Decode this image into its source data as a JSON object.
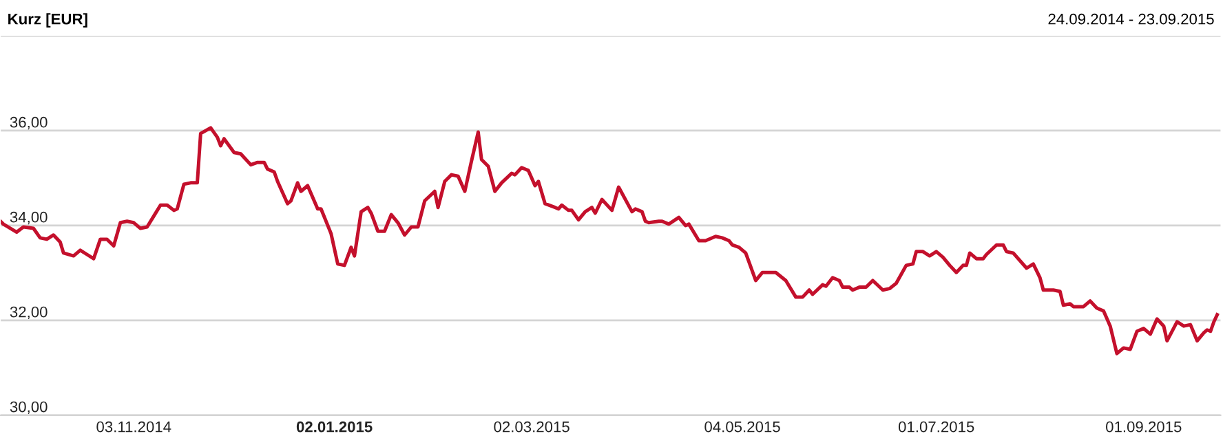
{
  "chart_data": {
    "type": "line",
    "title": "Kurz [EUR]",
    "subtitle": "24.09.2014 - 23.09.2015",
    "xlim": [
      "2014-09-24",
      "2015-09-24"
    ],
    "xticks": [
      {
        "value": "2014-11-03",
        "label": "03.11.2014"
      },
      {
        "value": "2015-01-02",
        "label": "02.01.2015"
      },
      {
        "value": "2015-03-02",
        "label": "02.03.2015"
      },
      {
        "value": "2015-05-04",
        "label": "04.05.2015"
      },
      {
        "value": "2015-07-01",
        "label": "01.07.2015"
      },
      {
        "value": "2015-09-01",
        "label": "01.09.2015"
      }
    ],
    "ylim": [
      30,
      38
    ],
    "yticks": [
      {
        "value": 30,
        "label": "30,00"
      },
      {
        "value": 32,
        "label": "32,00"
      },
      {
        "value": 34,
        "label": "34,00"
      },
      {
        "value": 36,
        "label": "36,00"
      },
      {
        "value": 38,
        "label": null
      }
    ],
    "grid": "y",
    "legend": false,
    "marker": "none",
    "line_style": "solid",
    "series": [
      {
        "color": "#c4102c",
        "x": [
          "2014-09-24",
          "2014-09-25",
          "2014-09-29",
          "2014-10-01",
          "2014-10-04",
          "2014-10-06",
          "2014-10-08",
          "2014-10-10",
          "2014-10-12",
          "2014-10-13",
          "2014-10-16",
          "2014-10-18",
          "2014-10-20",
          "2014-10-22",
          "2014-10-24",
          "2014-10-26",
          "2014-10-28",
          "2014-10-30",
          "2014-11-01",
          "2014-11-03",
          "2014-11-05",
          "2014-11-07",
          "2014-11-09",
          "2014-11-11",
          "2014-11-13",
          "2014-11-15",
          "2014-11-16",
          "2014-11-18",
          "2014-11-20",
          "2014-11-22",
          "2014-11-23",
          "2014-11-26",
          "2014-11-28",
          "2014-11-29",
          "2014-11-30",
          "2014-12-03",
          "2014-12-05",
          "2014-12-08",
          "2014-12-10",
          "2014-12-12",
          "2014-12-13",
          "2014-12-15",
          "2014-12-16",
          "2014-12-19",
          "2014-12-20",
          "2014-12-22",
          "2014-12-23",
          "2014-12-25",
          "2014-12-28",
          "2014-12-29",
          "2015-01-01",
          "2015-01-03",
          "2015-01-05",
          "2015-01-07",
          "2015-01-08",
          "2015-01-10",
          "2015-01-12",
          "2015-01-13",
          "2015-01-15",
          "2015-01-17",
          "2015-01-19",
          "2015-01-21",
          "2015-01-23",
          "2015-01-25",
          "2015-01-27",
          "2015-01-29",
          "2015-02-01",
          "2015-02-02",
          "2015-02-04",
          "2015-02-06",
          "2015-02-08",
          "2015-02-10",
          "2015-02-12",
          "2015-02-14",
          "2015-02-15",
          "2015-02-17",
          "2015-02-19",
          "2015-02-21",
          "2015-02-24",
          "2015-02-25",
          "2015-02-27",
          "2015-03-01",
          "2015-03-03",
          "2015-03-04",
          "2015-03-06",
          "2015-03-09",
          "2015-03-10",
          "2015-03-11",
          "2015-03-13",
          "2015-03-14",
          "2015-03-16",
          "2015-03-18",
          "2015-03-20",
          "2015-03-21",
          "2015-03-23",
          "2015-03-26",
          "2015-03-28",
          "2015-04-01",
          "2015-04-02",
          "2015-04-04",
          "2015-04-05",
          "2015-04-06",
          "2015-04-09",
          "2015-04-10",
          "2015-04-12",
          "2015-04-15",
          "2015-04-17",
          "2015-04-18",
          "2015-04-21",
          "2015-04-23",
          "2015-04-26",
          "2015-04-28",
          "2015-04-30",
          "2015-05-01",
          "2015-05-03",
          "2015-05-05",
          "2015-05-08",
          "2015-05-10",
          "2015-05-14",
          "2015-05-17",
          "2015-05-20",
          "2015-05-22",
          "2015-05-24",
          "2015-05-25",
          "2015-05-28",
          "2015-05-29",
          "2015-05-31",
          "2015-06-02",
          "2015-06-03",
          "2015-06-05",
          "2015-06-06",
          "2015-06-08",
          "2015-06-10",
          "2015-06-12",
          "2015-06-15",
          "2015-06-17",
          "2015-06-19",
          "2015-06-22",
          "2015-06-24",
          "2015-06-25",
          "2015-06-27",
          "2015-06-29",
          "2015-07-01",
          "2015-07-03",
          "2015-07-05",
          "2015-07-07",
          "2015-07-09",
          "2015-07-10",
          "2015-07-11",
          "2015-07-13",
          "2015-07-15",
          "2015-07-16",
          "2015-07-19",
          "2015-07-21",
          "2015-07-22",
          "2015-07-24",
          "2015-07-28",
          "2015-07-30",
          "2015-08-01",
          "2015-08-02",
          "2015-08-05",
          "2015-08-07",
          "2015-08-08",
          "2015-08-10",
          "2015-08-11",
          "2015-08-14",
          "2015-08-16",
          "2015-08-18",
          "2015-08-20",
          "2015-08-22",
          "2015-08-24",
          "2015-08-26",
          "2015-08-28",
          "2015-08-30",
          "2015-09-01",
          "2015-09-03",
          "2015-09-05",
          "2015-09-07",
          "2015-09-08",
          "2015-09-11",
          "2015-09-13",
          "2015-09-15",
          "2015-09-17",
          "2015-09-19",
          "2015-09-20",
          "2015-09-21",
          "2015-09-22",
          "2015-09-23"
        ],
        "values": [
          34.1,
          34.03,
          33.86,
          33.97,
          33.94,
          33.74,
          33.71,
          33.8,
          33.65,
          33.42,
          33.36,
          33.48,
          33.39,
          33.3,
          33.71,
          33.71,
          33.57,
          34.06,
          34.09,
          34.06,
          33.94,
          33.97,
          34.2,
          34.43,
          34.43,
          34.32,
          34.35,
          34.87,
          34.9,
          34.9,
          35.94,
          36.06,
          35.86,
          35.68,
          35.83,
          35.54,
          35.51,
          35.28,
          35.33,
          35.33,
          35.19,
          35.13,
          34.93,
          34.46,
          34.52,
          34.9,
          34.72,
          34.84,
          34.35,
          34.35,
          33.83,
          33.19,
          33.16,
          33.54,
          33.36,
          34.29,
          34.38,
          34.26,
          33.88,
          33.88,
          34.23,
          34.06,
          33.8,
          33.97,
          33.97,
          34.52,
          34.72,
          34.38,
          34.93,
          35.07,
          35.04,
          34.72,
          35.36,
          35.97,
          35.39,
          35.25,
          34.72,
          34.9,
          35.1,
          35.07,
          35.22,
          35.16,
          34.84,
          34.93,
          34.46,
          34.38,
          34.35,
          34.43,
          34.32,
          34.32,
          34.12,
          34.29,
          34.38,
          34.26,
          34.55,
          34.32,
          34.81,
          34.29,
          34.35,
          34.29,
          34.09,
          34.06,
          34.09,
          34.09,
          34.03,
          34.17,
          34.0,
          34.03,
          33.68,
          33.68,
          33.77,
          33.74,
          33.68,
          33.59,
          33.54,
          33.42,
          32.84,
          33.01,
          33.01,
          32.84,
          32.49,
          32.49,
          32.64,
          32.55,
          32.75,
          32.72,
          32.9,
          32.84,
          32.7,
          32.7,
          32.64,
          32.7,
          32.7,
          32.84,
          32.64,
          32.67,
          32.78,
          33.16,
          33.19,
          33.45,
          33.45,
          33.36,
          33.45,
          33.33,
          33.16,
          33.01,
          33.16,
          33.16,
          33.42,
          33.3,
          33.3,
          33.39,
          33.59,
          33.59,
          33.45,
          33.42,
          33.1,
          33.19,
          32.9,
          32.64,
          32.64,
          32.61,
          32.32,
          32.35,
          32.29,
          32.29,
          32.41,
          32.26,
          32.2,
          31.88,
          31.3,
          31.42,
          31.39,
          31.77,
          31.83,
          31.71,
          32.03,
          31.88,
          31.57,
          31.97,
          31.88,
          31.91,
          31.57,
          31.74,
          31.8,
          31.77,
          31.97,
          32.12
        ]
      }
    ]
  }
}
